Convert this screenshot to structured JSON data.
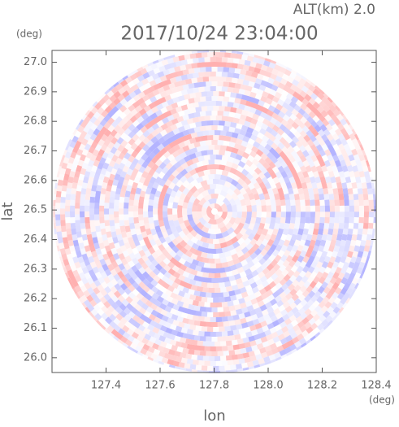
{
  "chart_data": {
    "type": "polar",
    "title": "2017/10/24 23:04:00",
    "subtitle": "ALT(km) 2.0",
    "x_label": "lon",
    "x_unit": "(deg)",
    "y_label": "lat",
    "y_unit": "(deg)",
    "xlim": [
      127.2,
      128.4
    ],
    "xticks": [
      127.4,
      127.6,
      127.8,
      {
        "value": 128,
        "label": "128.0"
      },
      128.2,
      128.4
    ],
    "ylim": [
      25.95,
      27.04
    ],
    "yticks": [
      {
        "value": 26,
        "label": "26.0"
      },
      26.1,
      26.2,
      26.3,
      26.4,
      26.5,
      26.6,
      26.7,
      26.8,
      26.9,
      {
        "value": 27,
        "label": "27.0"
      }
    ],
    "colors": [
      "#ffb0b0",
      "#b4b4ff"
    ]
  }
}
